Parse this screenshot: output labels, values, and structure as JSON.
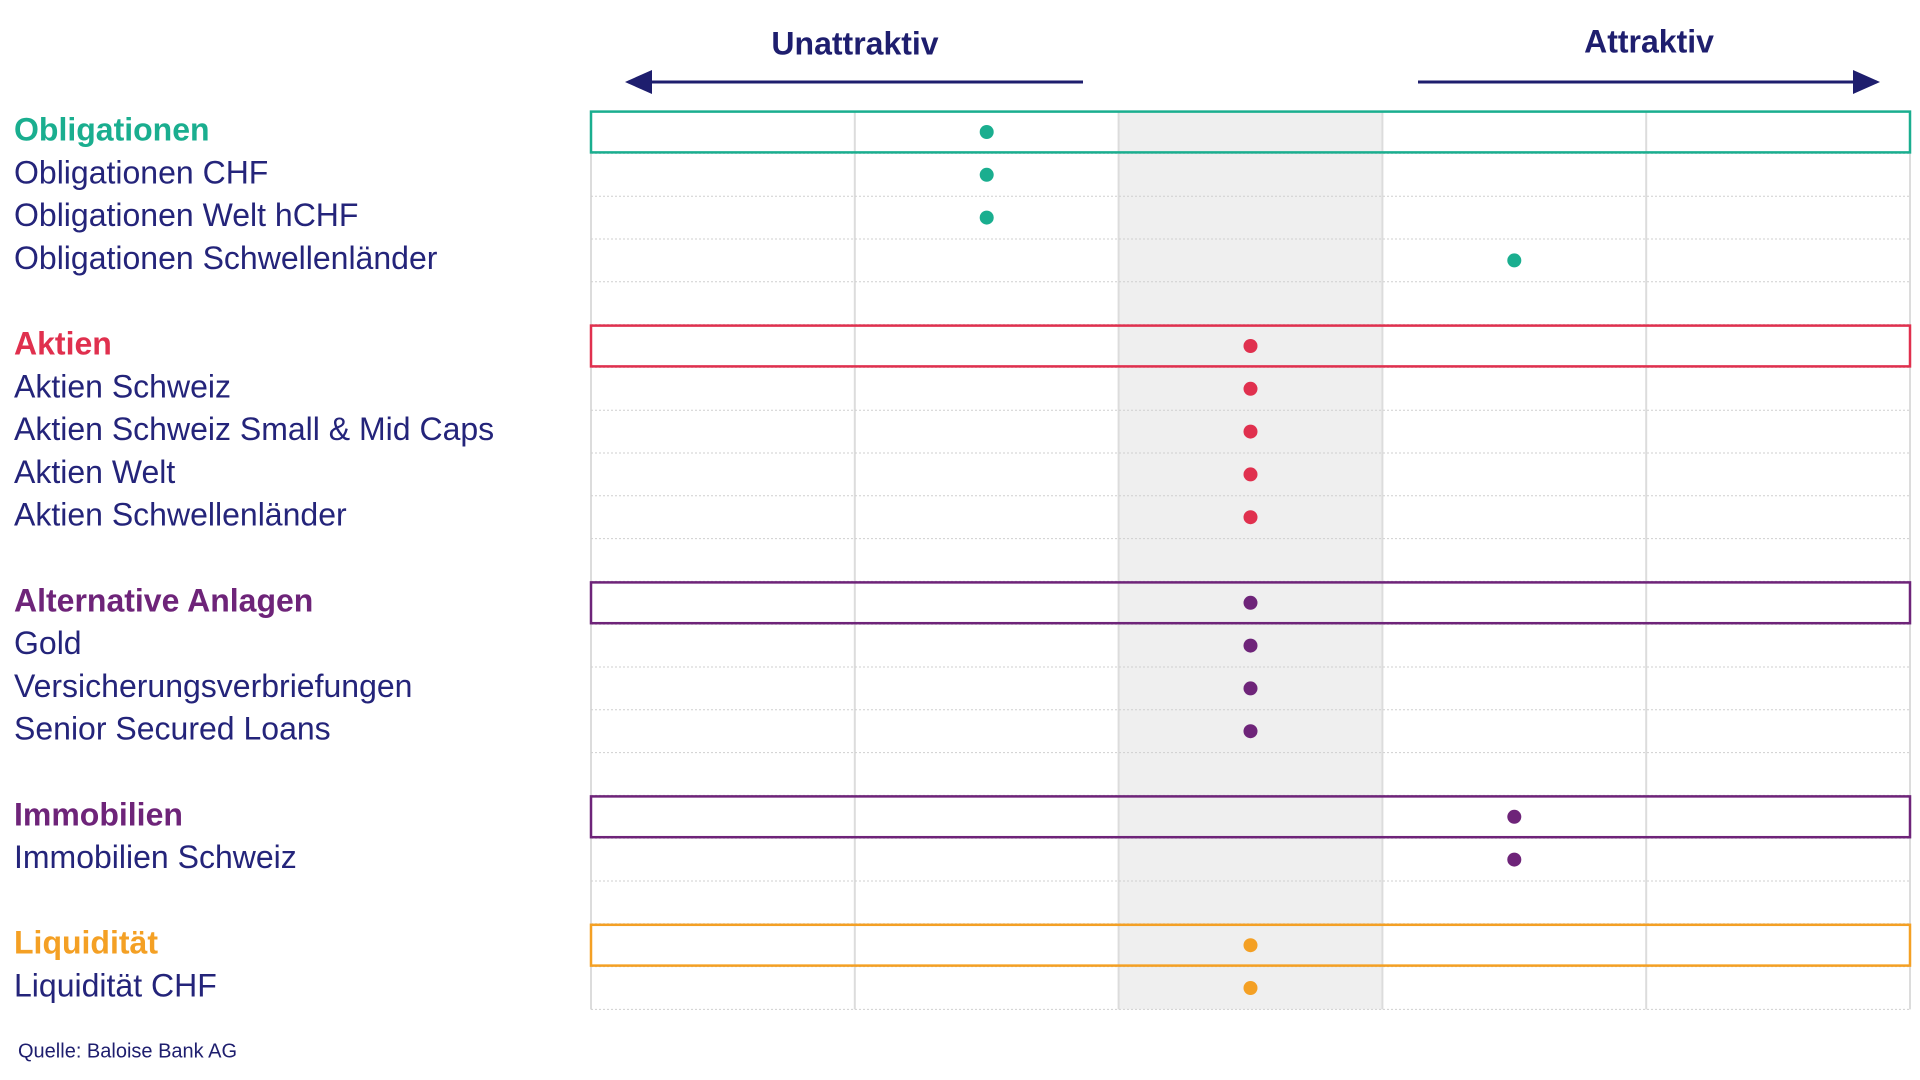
{
  "chart_data": {
    "type": "dot",
    "axis_labels": {
      "left": "Unattraktiv",
      "right": "Attraktiv"
    },
    "xlim": [
      -2.5,
      2.5
    ],
    "groups": [
      {
        "name": "Obligationen",
        "color": "#1aae8f",
        "value": -1,
        "items": [
          {
            "name": "Obligationen CHF",
            "value": -1
          },
          {
            "name": "Obligationen Welt hCHF",
            "value": -1
          },
          {
            "name": "Obligationen Schwellenländer",
            "value": 1
          }
        ]
      },
      {
        "name": "Aktien",
        "color": "#e0304e",
        "value": 0,
        "items": [
          {
            "name": "Aktien Schweiz",
            "value": 0
          },
          {
            "name": "Aktien Schweiz Small & Mid Caps",
            "value": 0
          },
          {
            "name": "Aktien Welt",
            "value": 0
          },
          {
            "name": "Aktien Schwellenländer",
            "value": 0
          }
        ]
      },
      {
        "name": "Alternative Anlagen",
        "color": "#6e2479",
        "value": 0,
        "items": [
          {
            "name": "Gold",
            "value": 0
          },
          {
            "name": "Versicherungsverbriefungen",
            "value": 0
          },
          {
            "name": "Senior Secured Loans",
            "value": 0
          }
        ]
      },
      {
        "name": "Immobilien",
        "color": "#6e2479",
        "value": 1,
        "items": [
          {
            "name": "Immobilien Schweiz",
            "value": 1
          }
        ]
      },
      {
        "name": "Liquidität",
        "color": "#f4a024",
        "value": 0,
        "items": [
          {
            "name": "Liquidität CHF",
            "value": 0
          }
        ]
      }
    ],
    "source": "Quelle: Baloise Bank AG"
  }
}
